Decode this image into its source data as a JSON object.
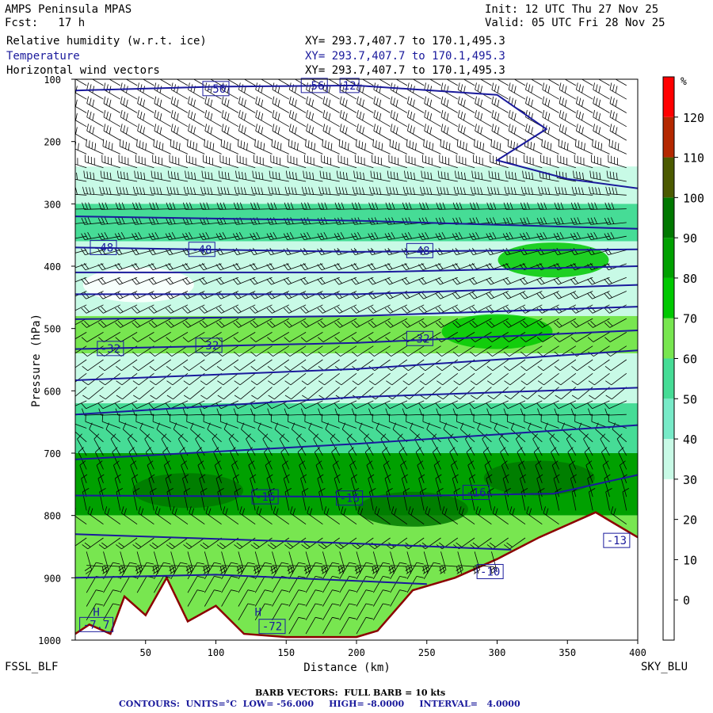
{
  "header": {
    "model": "AMPS Peninsula MPAS",
    "init": "Init: 12 UTC Thu 27 Nov 25",
    "fcst": "Fcst:   17 h",
    "valid": "Valid: 05 UTC Fri 28 Nov 25",
    "field1_name": "Relative humidity (w.r.t. ice)",
    "field1_xy": "XY= 293.7,407.7 to 170.1,495.3",
    "field2_name": "Temperature",
    "field2_xy": "XY= 293.7,407.7 to 170.1,495.3",
    "field3_name": "Horizontal wind vectors",
    "field3_xy": "XY= 293.7,407.7 to 170.1,495.3"
  },
  "footer": {
    "barb_note": "BARB VECTORS:  FULL BARB = 10 kts",
    "contours_note": "CONTOURS:  UNITS=°C  LOW= -56.000     HIGH= -8.0000     INTERVAL=   4.0000"
  },
  "endpoints": {
    "left": "FSSL_BLF",
    "right": "SKY_BLU"
  },
  "colors": {
    "temp_contour": "#1a1a9c",
    "terrain_edge": "#8b0000",
    "rh_scale": [
      "#ffffff",
      "#ffffff",
      "#ffffff",
      "#ffffff",
      "#c8fae6",
      "#78eac8",
      "#46dc96",
      "#78e650",
      "#00c800",
      "#00a000",
      "#007800",
      "#4b5a00",
      "#b42800",
      "#ff0000"
    ]
  },
  "chart_data": {
    "type": "heatmap",
    "subtype": "vertical cross-section",
    "xlabel": "Distance (km)",
    "ylabel": "Pressure (hPa)",
    "xlim": [
      0,
      400
    ],
    "ylim": [
      1000,
      100
    ],
    "x_ticks": [
      50,
      100,
      150,
      200,
      250,
      300,
      350,
      400
    ],
    "y_ticks": [
      100,
      200,
      300,
      400,
      500,
      600,
      700,
      800,
      900,
      1000
    ],
    "colorbar": {
      "unit": "%",
      "levels": [
        -10,
        0,
        10,
        20,
        30,
        40,
        50,
        60,
        70,
        80,
        90,
        100,
        110,
        120,
        130
      ],
      "labels": [
        0,
        10,
        20,
        30,
        40,
        50,
        60,
        70,
        80,
        90,
        100,
        110,
        120
      ]
    },
    "rh_bands": [
      {
        "p_top": 100,
        "p_bot": 240,
        "rh": 10
      },
      {
        "p_top": 240,
        "p_bot": 300,
        "rh": 35
      },
      {
        "p_top": 300,
        "p_bot": 360,
        "rh": 50
      },
      {
        "p_top": 360,
        "p_bot": 480,
        "rh": 35
      },
      {
        "p_top": 480,
        "p_bot": 540,
        "rh": 60
      },
      {
        "p_top": 540,
        "p_bot": 620,
        "rh": 35
      },
      {
        "p_top": 620,
        "p_bot": 700,
        "rh": 55
      },
      {
        "p_top": 700,
        "p_bot": 800,
        "rh": 80
      },
      {
        "p_top": 800,
        "p_bot": 1000,
        "rh": 60
      }
    ],
    "rh_blobs": [
      {
        "x": 45,
        "p": 430,
        "rh": 20
      },
      {
        "x": 300,
        "p": 505,
        "rh": 75
      },
      {
        "x": 340,
        "p": 390,
        "rh": 75
      },
      {
        "x": 80,
        "p": 760,
        "rh": 90
      },
      {
        "x": 240,
        "p": 790,
        "rh": 90
      },
      {
        "x": 330,
        "p": 740,
        "rh": 90
      }
    ],
    "terrain": [
      [
        0,
        990
      ],
      [
        10,
        975
      ],
      [
        25,
        990
      ],
      [
        35,
        930
      ],
      [
        50,
        960
      ],
      [
        65,
        900
      ],
      [
        80,
        970
      ],
      [
        100,
        945
      ],
      [
        120,
        990
      ],
      [
        150,
        995
      ],
      [
        200,
        995
      ],
      [
        215,
        985
      ],
      [
        240,
        920
      ],
      [
        270,
        900
      ],
      [
        300,
        870
      ],
      [
        330,
        835
      ],
      [
        370,
        795
      ],
      [
        385,
        815
      ],
      [
        400,
        835
      ]
    ],
    "isotherms": [
      {
        "value": -56,
        "pts": [
          [
            0,
            118
          ],
          [
            100,
            112
          ],
          [
            200,
            110
          ],
          [
            300,
            125
          ],
          [
            335,
            180
          ],
          [
            300,
            230
          ],
          [
            350,
            260
          ],
          [
            400,
            275
          ]
        ]
      },
      {
        "value": -52,
        "pts": [
          [
            0,
            320
          ],
          [
            200,
            327
          ],
          [
            400,
            340
          ]
        ]
      },
      {
        "value": -48,
        "pts": [
          [
            0,
            370
          ],
          [
            200,
            377
          ],
          [
            400,
            373
          ]
        ]
      },
      {
        "value": -44,
        "pts": [
          [
            0,
            410
          ],
          [
            200,
            410
          ],
          [
            400,
            400
          ]
        ]
      },
      {
        "value": -40,
        "pts": [
          [
            0,
            445
          ],
          [
            200,
            445
          ],
          [
            400,
            430
          ]
        ]
      },
      {
        "value": -36,
        "pts": [
          [
            0,
            485
          ],
          [
            200,
            480
          ],
          [
            400,
            465
          ]
        ]
      },
      {
        "value": -32,
        "pts": [
          [
            0,
            533
          ],
          [
            200,
            523
          ],
          [
            400,
            503
          ]
        ]
      },
      {
        "value": -28,
        "pts": [
          [
            0,
            583
          ],
          [
            200,
            565
          ],
          [
            400,
            535
          ]
        ]
      },
      {
        "value": -24,
        "pts": [
          [
            0,
            638
          ],
          [
            200,
            610
          ],
          [
            400,
            595
          ]
        ]
      },
      {
        "value": -20,
        "pts": [
          [
            0,
            710
          ],
          [
            200,
            685
          ],
          [
            400,
            655
          ]
        ]
      },
      {
        "value": -16,
        "pts": [
          [
            0,
            768
          ],
          [
            200,
            770
          ],
          [
            340,
            765
          ],
          [
            400,
            735
          ]
        ]
      },
      {
        "value": -12,
        "pts": [
          [
            0,
            830
          ],
          [
            200,
            845
          ],
          [
            310,
            855
          ]
        ]
      },
      {
        "value": -8,
        "pts": [
          [
            0,
            900
          ],
          [
            100,
            895
          ],
          [
            200,
            905
          ],
          [
            250,
            910
          ]
        ]
      }
    ],
    "contour_labels": [
      {
        "text": "-56",
        "x": 100,
        "p": 115
      },
      {
        "text": "-56",
        "x": 170,
        "p": 110
      },
      {
        "text": "12",
        "x": 195,
        "p": 110
      },
      {
        "text": "-48",
        "x": 20,
        "p": 370
      },
      {
        "text": "-48",
        "x": 90,
        "p": 373
      },
      {
        "text": "-48",
        "x": 245,
        "p": 375
      },
      {
        "text": "-32",
        "x": 25,
        "p": 532
      },
      {
        "text": "-32",
        "x": 95,
        "p": 527
      },
      {
        "text": "-32",
        "x": 245,
        "p": 516
      },
      {
        "text": "-16",
        "x": 135,
        "p": 770
      },
      {
        "text": "-16",
        "x": 195,
        "p": 772
      },
      {
        "text": "-16",
        "x": 285,
        "p": 763
      },
      {
        "text": "-13",
        "x": 385,
        "p": 840
      },
      {
        "text": "-10",
        "x": 295,
        "p": 890
      },
      {
        "text": "-7.7",
        "x": 15,
        "p": 975
      },
      {
        "text": "-72",
        "x": 140,
        "p": 978
      },
      {
        "text": "H",
        "x": 130,
        "p": 955
      },
      {
        "text": "H",
        "x": 15,
        "p": 955
      }
    ],
    "wind": {
      "barb_unit": "kts",
      "full_barb": 10,
      "levels": [
        {
          "p": 100,
          "dir": 300,
          "spd": 30
        },
        {
          "p": 200,
          "dir": 300,
          "spd": 35
        },
        {
          "p": 300,
          "dir": 270,
          "spd": 35
        },
        {
          "p": 400,
          "dir": 250,
          "spd": 20
        },
        {
          "p": 500,
          "dir": 240,
          "spd": 15
        },
        {
          "p": 600,
          "dir": 230,
          "spd": 10
        },
        {
          "p": 700,
          "dir": 330,
          "spd": 10
        },
        {
          "p": 800,
          "dir": 350,
          "spd": 15
        },
        {
          "p": 900,
          "dir": 30,
          "spd": 15
        },
        {
          "p": 1000,
          "dir": 30,
          "spd": 10
        }
      ]
    }
  }
}
